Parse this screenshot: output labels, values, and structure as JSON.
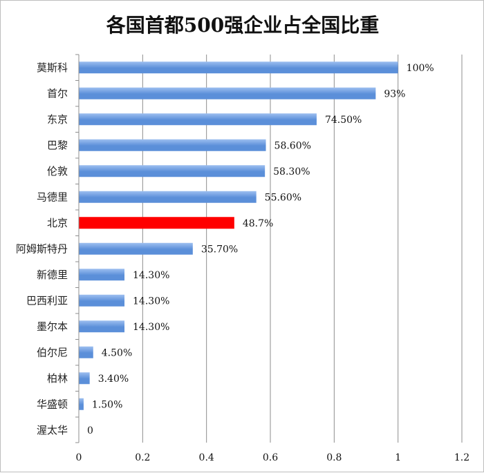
{
  "chart_data": {
    "type": "bar",
    "orientation": "horizontal",
    "title": "各国首都500强企业占全国比重",
    "categories": [
      "莫斯科",
      "首尔",
      "东京",
      "巴黎",
      "伦敦",
      "马德里",
      "北京",
      "阿姆斯特丹",
      "新德里",
      "巴西利亚",
      "墨尔本",
      "伯尔尼",
      "柏林",
      "华盛顿",
      "渥太华"
    ],
    "values": [
      1.0,
      0.93,
      0.745,
      0.586,
      0.583,
      0.556,
      0.487,
      0.357,
      0.143,
      0.143,
      0.143,
      0.045,
      0.034,
      0.015,
      0
    ],
    "value_labels": [
      "100%",
      "93%",
      "74.50%",
      "58.60%",
      "58.30%",
      "55.60%",
      "48.7%",
      "35.70%",
      "14.30%",
      "14.30%",
      "14.30%",
      "4.50%",
      "3.40%",
      "1.50%",
      "0"
    ],
    "highlight_index": 6,
    "colors": {
      "bar": "#5b8fd9",
      "bar_light": "#9dbff0",
      "highlight": "#ff0000",
      "grid": "#8c8c8c"
    },
    "xlim": [
      0,
      1.2
    ],
    "xticks": [
      0,
      0.2,
      0.4,
      0.6,
      0.8,
      1,
      1.2
    ],
    "xtick_labels": [
      "0",
      "0.2",
      "0.4",
      "0.6",
      "0.8",
      "1",
      "1.2"
    ],
    "grid": true,
    "legend": false
  }
}
